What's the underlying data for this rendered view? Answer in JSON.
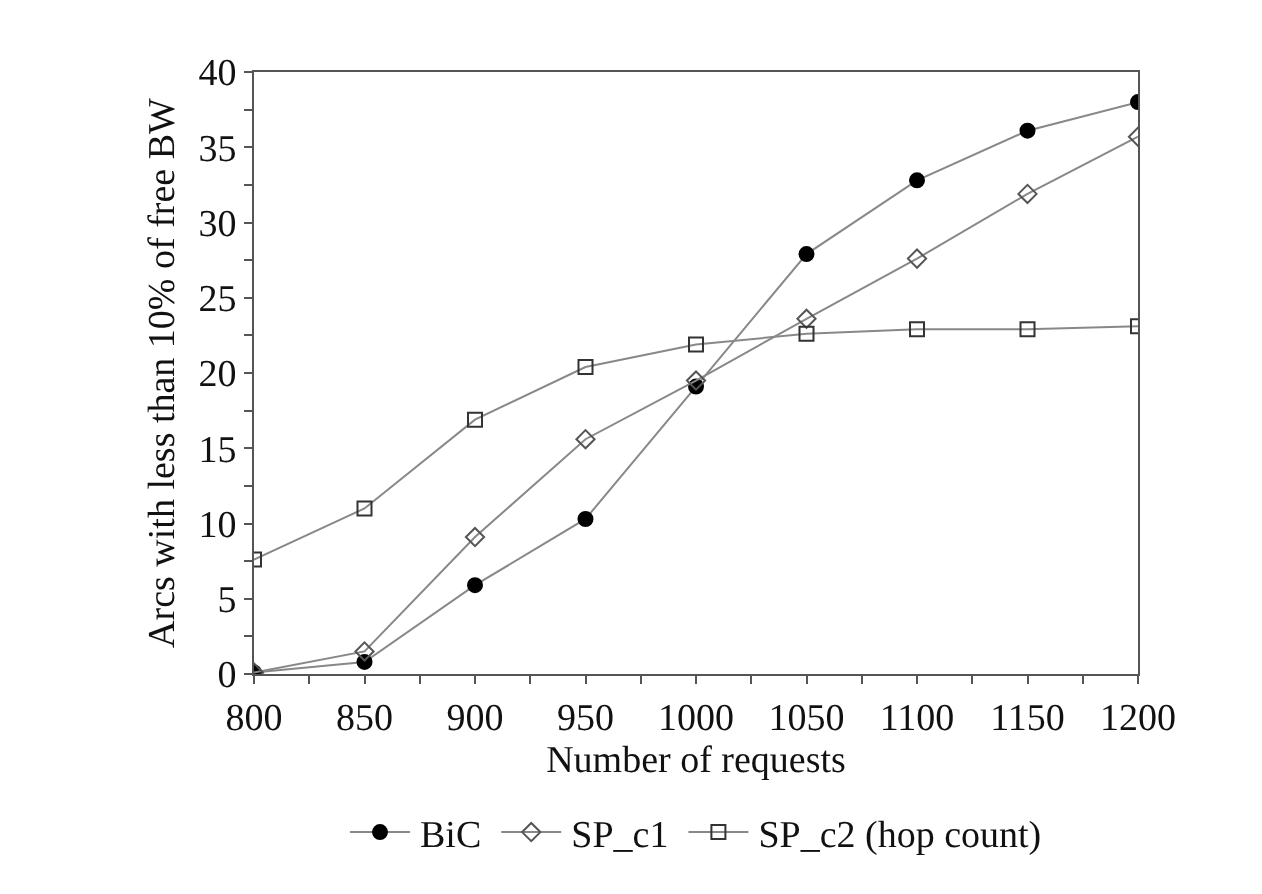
{
  "chart_data": {
    "type": "line",
    "xlabel": "Number of requests",
    "ylabel": "Arcs with less than 10% of free BW",
    "x": [
      800,
      850,
      900,
      950,
      1000,
      1050,
      1100,
      1150,
      1200
    ],
    "series": [
      {
        "name": "BiC",
        "color": "#000000",
        "marker": "circle",
        "values": [
          0.1,
          0.8,
          5.9,
          10.3,
          19.1,
          27.9,
          32.8,
          36.1,
          38.0
        ]
      },
      {
        "name": "SP_c1",
        "color": "#555555",
        "marker": "diamond",
        "values": [
          0.1,
          1.5,
          9.1,
          15.6,
          19.5,
          23.6,
          27.6,
          31.9,
          35.7
        ]
      },
      {
        "name": "SP_c2 (hop count)",
        "color": "#333333",
        "marker": "square",
        "values": [
          7.6,
          11.0,
          16.9,
          20.4,
          21.9,
          22.6,
          22.9,
          22.9,
          23.1
        ]
      }
    ],
    "xlim": [
      800,
      1200
    ],
    "xticks": [
      800,
      850,
      900,
      950,
      1000,
      1050,
      1100,
      1150,
      1200
    ],
    "ylim": [
      0,
      40
    ],
    "yticks": [
      0,
      5,
      10,
      15,
      20,
      25,
      30,
      35,
      40
    ],
    "legend": "bottom",
    "line_style": "solid"
  }
}
